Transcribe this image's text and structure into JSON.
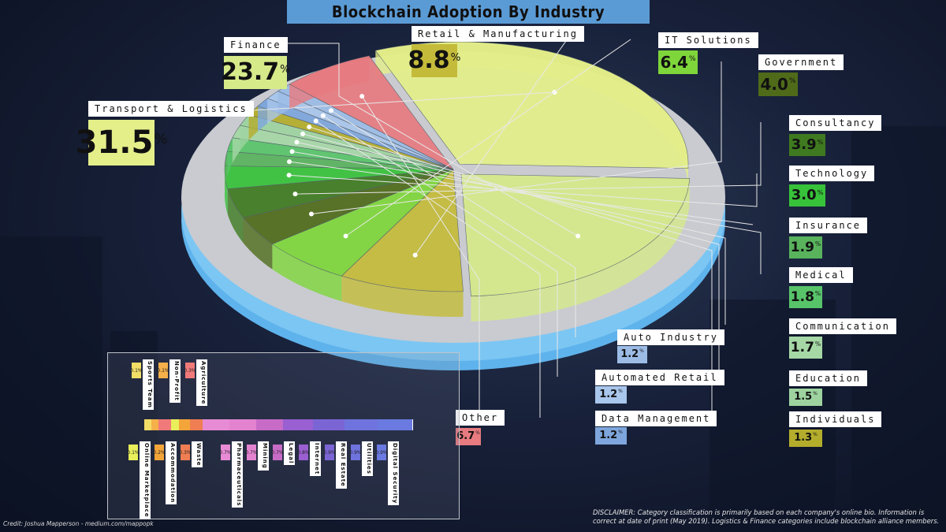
{
  "title": "Blockchain Adoption By Industry",
  "chart_data": {
    "type": "pie",
    "title": "Blockchain Adoption By Industry",
    "unit": "%",
    "slices": [
      {
        "label": "Transport & Logistics",
        "value": 31.5,
        "display": "31.5",
        "color": "#e4ef8a"
      },
      {
        "label": "Finance",
        "value": 23.7,
        "display": "23.7",
        "color": "#d6ea8a"
      },
      {
        "label": "Retail & Manufacturing",
        "value": 8.8,
        "display": "8.8",
        "color": "#c4bb3a"
      },
      {
        "label": "IT Solutions",
        "value": 6.4,
        "display": "6.4",
        "color": "#7ed63a"
      },
      {
        "label": "Government",
        "value": 4.0,
        "display": "4.0",
        "color": "#4f6b1a"
      },
      {
        "label": "Consultancy",
        "value": 3.9,
        "display": "3.9",
        "color": "#3f7a20"
      },
      {
        "label": "Technology",
        "value": 3.0,
        "display": "3.0",
        "color": "#37c23a"
      },
      {
        "label": "Insurance",
        "value": 1.9,
        "display": "1.9",
        "color": "#59b35d"
      },
      {
        "label": "Medical",
        "value": 1.8,
        "display": "1.8",
        "color": "#58c46a"
      },
      {
        "label": "Communication",
        "value": 1.7,
        "display": "1.7",
        "color": "#a6d8a6"
      },
      {
        "label": "Education",
        "value": 1.5,
        "display": "1.5",
        "color": "#9ed3a0"
      },
      {
        "label": "Individuals",
        "value": 1.3,
        "display": "1.3",
        "color": "#b4ad2c"
      },
      {
        "label": "Data Management",
        "value": 1.2,
        "display": "1.2",
        "color": "#7ea6dc"
      },
      {
        "label": "Automated Retail",
        "value": 1.2,
        "display": "1.2",
        "color": "#a9c6ec"
      },
      {
        "label": "Auto Industry",
        "value": 1.2,
        "display": "1.2",
        "color": "#9cbce6"
      },
      {
        "label": "Other",
        "value": 6.7,
        "display": "6.7",
        "color": "#e77b80"
      }
    ],
    "other_breakdown": [
      {
        "label": "Sports Team",
        "value": "0.1%",
        "color": "#f2dd67"
      },
      {
        "label": "Non-Profit",
        "value": "0.1%",
        "color": "#f5b04a"
      },
      {
        "label": "Agriculture",
        "value": "0.3%",
        "color": "#f07a7a"
      },
      {
        "label": "Online Marketplace",
        "value": "0.1%",
        "color": "#e9ef5a"
      },
      {
        "label": "Accommodation",
        "value": "0.2%",
        "color": "#f3a53a"
      },
      {
        "label": "Waste",
        "value": "0.3%",
        "color": "#ef7e52"
      },
      {
        "label": "Pharmaceuticals",
        "value": "0.7%",
        "color": "#e78bd5"
      },
      {
        "label": "Mining",
        "value": "0.7%",
        "color": "#e383d0"
      },
      {
        "label": "Legal",
        "value": "0.7%",
        "color": "#c76bc7"
      },
      {
        "label": "Internet",
        "value": "0.8%",
        "color": "#9a5fd0"
      },
      {
        "label": "Real Estate",
        "value": "0.9%",
        "color": "#7b65d5"
      },
      {
        "label": "Utilities",
        "value": "0.9%",
        "color": "#6f73dd"
      },
      {
        "label": "Digital Security",
        "value": "0.9%",
        "color": "#6a7ae0"
      }
    ]
  },
  "percent_symbol": "%",
  "disclaimer": "DISCLAIMER: Category classification is primarily based on each company's online bio. Information is correct at date of print (May 2019). Logistics & Finance categories include blockchain alliance members.",
  "credit": "Credit: Joshua Mapperson - medium.com/mappopk"
}
